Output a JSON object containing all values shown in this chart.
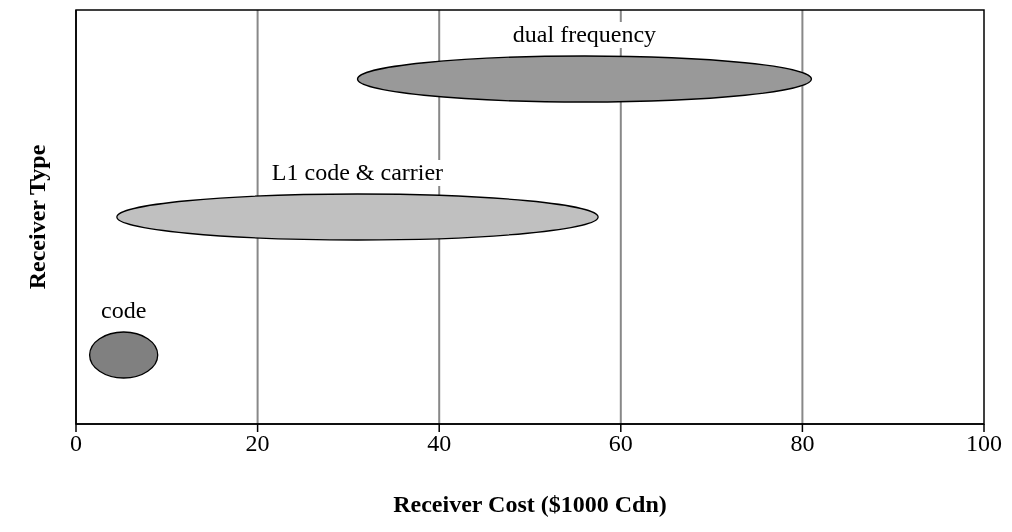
{
  "chart_data": {
    "type": "bar",
    "orientation": "horizontal",
    "xlabel": "Receiver Cost ($1000 Cdn)",
    "ylabel": "Receiver Type",
    "categories": [
      "dual frequency",
      "L1 code & carrier",
      "code"
    ],
    "base": [
      31,
      4.5,
      1.5
    ],
    "values": [
      50,
      53,
      7.5
    ],
    "colors": [
      "#999999",
      "#c0c0c0",
      "#808080"
    ],
    "xlim": [
      0,
      100
    ],
    "xticks": [
      0,
      20,
      40,
      60,
      80,
      100
    ],
    "grid": "x",
    "tick_labels": "x"
  }
}
